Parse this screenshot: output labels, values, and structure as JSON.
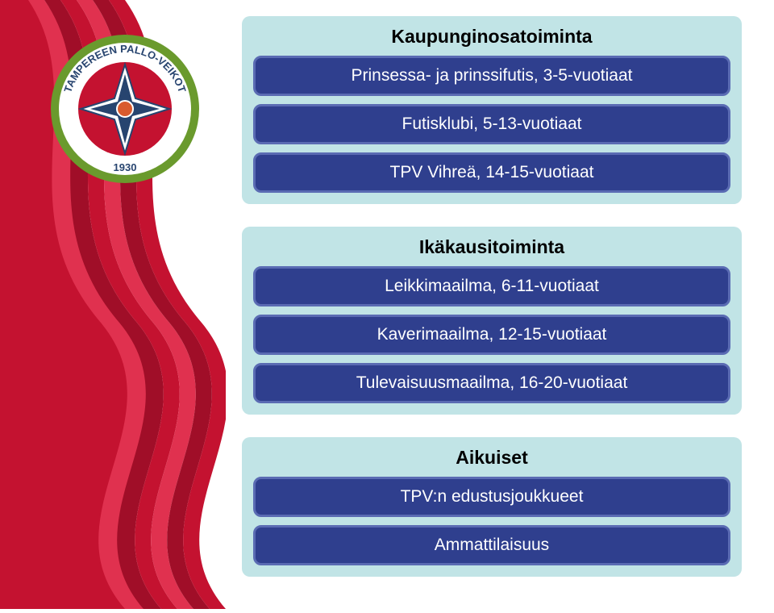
{
  "colors": {
    "panel_bg": "#c1e4e6",
    "pill_bg": "#2f3f8e",
    "pill_border": "#5a6bb3",
    "pill_text": "#ffffff",
    "title_text": "#000000",
    "wave_color": "#c41230",
    "wave_color_light": "#e0314f",
    "wave_color_dark": "#a00e28",
    "logo_ring_outer": "#6a9a2d",
    "logo_ring_inner": "#ffffff",
    "logo_center_bg": "#c41230",
    "logo_star_outer": "#ffffff",
    "logo_star_inner": "#27446f",
    "logo_ball": "#d95b2e",
    "logo_text": "#27446f"
  },
  "typography": {
    "title_fontsize": 23,
    "pill_fontsize": 21,
    "logo_top_fontsize": 13,
    "logo_year_fontsize": 13
  },
  "layout": {
    "panel_radius": 10,
    "pill_radius": 10,
    "panel_gap": 28,
    "left_decor_width": 280
  },
  "logo": {
    "top_text": "TAMPEREEN PALLO-VEIKOT",
    "year": "1930"
  },
  "panels": [
    {
      "title": "Kaupunginosatoiminta",
      "items": [
        "Prinsessa- ja prinssifutis, 3-5-vuotiaat",
        "Futisklubi, 5-13-vuotiaat",
        "TPV Vihreä, 14-15-vuotiaat"
      ]
    },
    {
      "title": "Ikäkausitoiminta",
      "items": [
        "Leikkimaailma, 6-11-vuotiaat",
        "Kaverimaailma, 12-15-vuotiaat",
        "Tulevaisuusmaailma, 16-20-vuotiaat"
      ]
    },
    {
      "title": "Aikuiset",
      "items": [
        "TPV:n edustusjoukkueet",
        "Ammattilaisuus"
      ]
    }
  ]
}
